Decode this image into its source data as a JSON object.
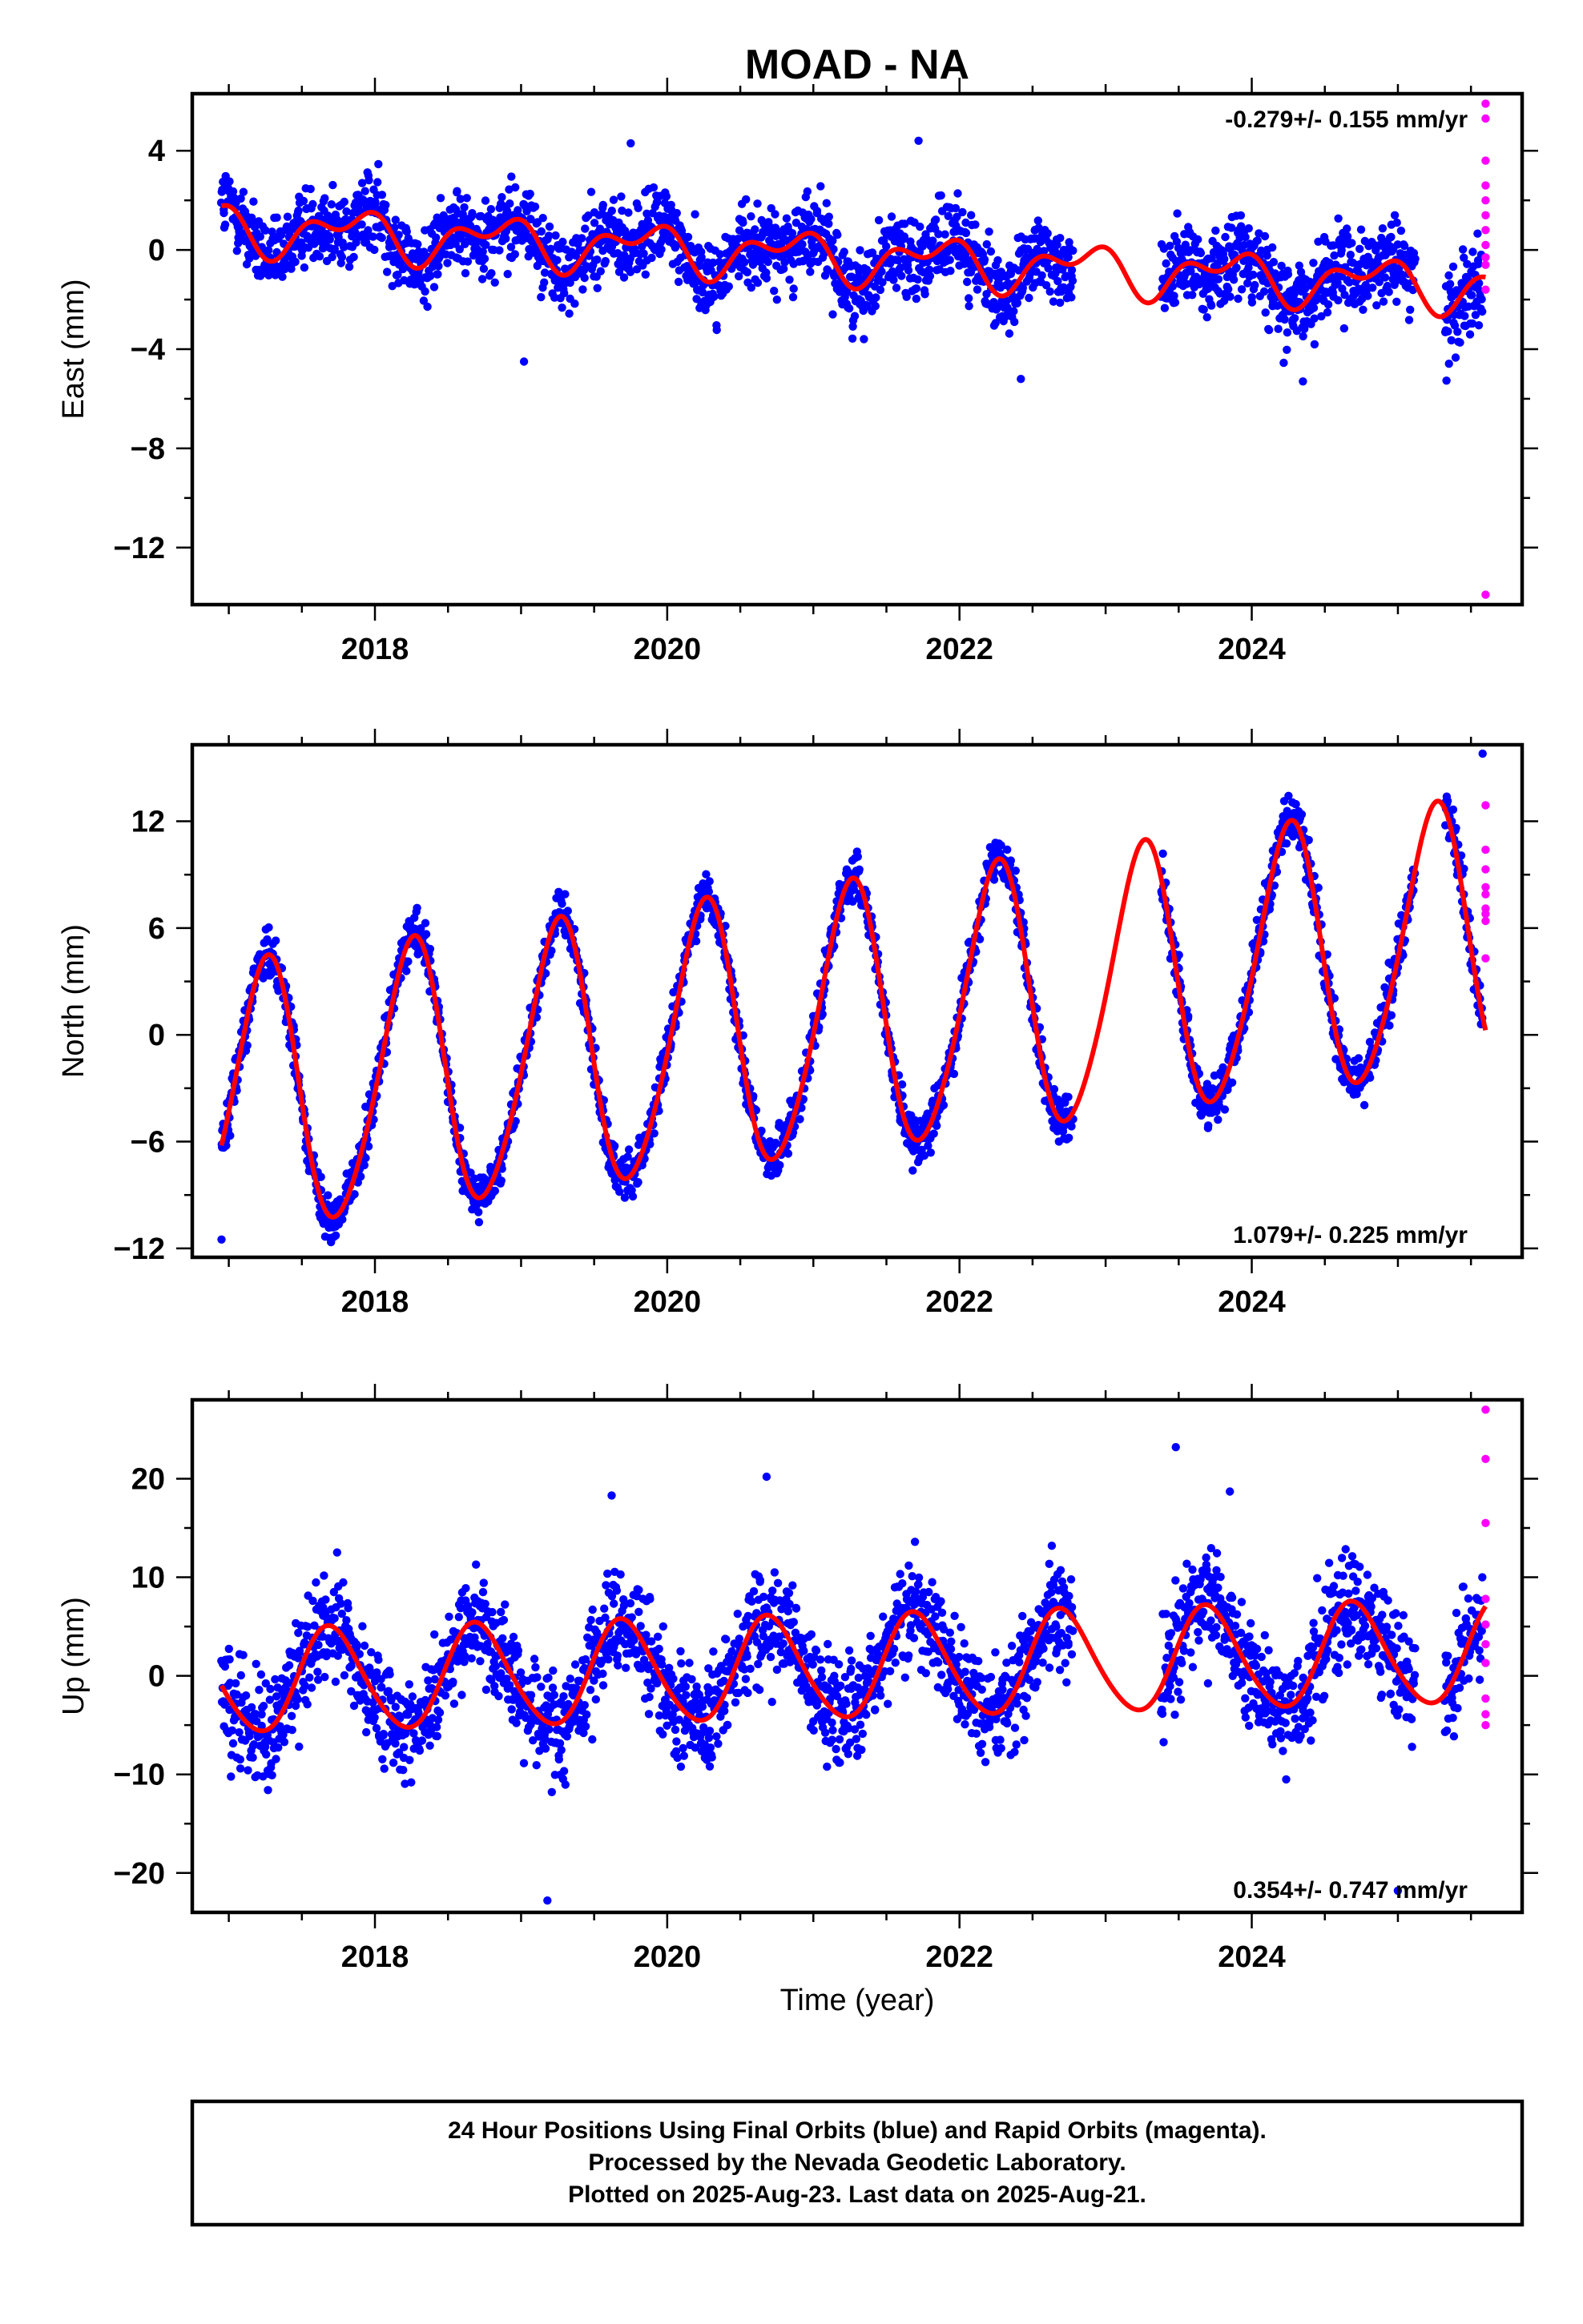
{
  "title": "MOAD - NA",
  "colors": {
    "final_orbits": "#0000ff",
    "rapid_orbits": "#ff00ff",
    "model": "#ff0000",
    "frame": "#000000"
  },
  "x_axis": {
    "label": "Time (year)",
    "range": [
      2016.75,
      2025.85
    ],
    "ticks": [
      2018,
      2020,
      2022,
      2024
    ],
    "tick_labels": [
      "2018",
      "2020",
      "2022",
      "2024"
    ]
  },
  "footer": {
    "line1": "24 Hour Positions Using Final Orbits (blue) and Rapid Orbits (magenta).",
    "line2": "Processed by the Nevada Geodetic Laboratory.",
    "line3": "Plotted on 2025-Aug-23. Last data on 2025-Aug-21."
  },
  "chart_data": [
    {
      "type": "scatter",
      "component": "east",
      "ylabel": "East (mm)",
      "ylim": [
        -14.3,
        6.3
      ],
      "yticks": [
        4,
        0,
        -4,
        -8,
        -12
      ],
      "ytick_labels": [
        "4",
        "0",
        "−4",
        "−8",
        "−12"
      ],
      "rate_text": "-0.279+/- 0.155 mm/yr",
      "rate_position": "top-right",
      "series": [
        {
          "name": "Final Orbits (blue)",
          "segments": [
            {
              "x": [
                2016.95,
                2022.78
              ],
              "spread": 1.1
            },
            {
              "x": [
                2023.38,
                2025.12
              ],
              "spread": 1.2
            },
            {
              "x": [
                2025.32,
                2025.58
              ],
              "spread": 1.3
            }
          ],
          "outliers": [
            {
              "x": 2019.02,
              "y": -4.5
            },
            {
              "x": 2021.72,
              "y": 4.4
            },
            {
              "x": 2019.75,
              "y": 4.3
            },
            {
              "x": 2022.42,
              "y": -5.2
            },
            {
              "x": 2024.35,
              "y": -5.3
            }
          ]
        },
        {
          "name": "Rapid Orbits (magenta)",
          "x": [
            2025.6,
            2025.6,
            2025.6,
            2025.6,
            2025.6,
            2025.6,
            2025.6,
            2025.6,
            2025.6,
            2025.6,
            2025.6,
            2025.6
          ],
          "y": [
            5.9,
            5.3,
            3.6,
            2.6,
            2.0,
            1.4,
            0.8,
            0.2,
            -0.3,
            -0.6,
            -1.6,
            -13.9
          ]
        },
        {
          "name": "model",
          "model": {
            "t0": 2016.95,
            "y0": 0.9,
            "rate": -0.279,
            "amp1": 0.75,
            "phase1": 0.42,
            "amp2": 0.55,
            "phase2": 0.1
          },
          "x_range": [
            2016.95,
            2025.6
          ]
        }
      ]
    },
    {
      "type": "scatter",
      "component": "north",
      "ylabel": "North (mm)",
      "ylim": [
        -12.5,
        16.3
      ],
      "yticks": [
        12,
        6,
        0,
        -6,
        -12
      ],
      "ytick_labels": [
        "12",
        "6",
        "0",
        "−6",
        "−12"
      ],
      "rate_text": "1.079+/- 0.225 mm/yr",
      "rate_position": "bottom-right",
      "series": [
        {
          "name": "Final Orbits (blue)",
          "segments": [
            {
              "x": [
                2016.95,
                2022.78
              ],
              "spread": 0.9
            },
            {
              "x": [
                2023.38,
                2025.12
              ],
              "spread": 1.0
            },
            {
              "x": [
                2025.32,
                2025.58
              ],
              "spread": 1.1
            }
          ],
          "outliers": [
            {
              "x": 2025.58,
              "y": 15.8
            },
            {
              "x": 2016.95,
              "y": -11.5
            }
          ]
        },
        {
          "name": "Rapid Orbits (magenta)",
          "x": [
            2025.6,
            2025.6,
            2025.6,
            2025.6,
            2025.6,
            2025.6,
            2025.6,
            2025.6,
            2025.6
          ],
          "y": [
            12.9,
            10.4,
            9.3,
            8.3,
            7.9,
            7.1,
            6.8,
            6.4,
            4.3
          ]
        },
        {
          "name": "model",
          "model": {
            "t0": 2016.95,
            "y0": -3.9,
            "rate": 1.079,
            "amp1": 7.5,
            "phase1": 1.0,
            "amp2": 0.8,
            "phase2": 0.3
          },
          "x_range": [
            2016.95,
            2025.6
          ]
        }
      ]
    },
    {
      "type": "scatter",
      "component": "up",
      "ylabel": "Up (mm)",
      "ylim": [
        -24,
        28
      ],
      "yticks": [
        20,
        10,
        0,
        -10,
        -20
      ],
      "ytick_labels": [
        "20",
        "10",
        "0",
        "−10",
        "−20"
      ],
      "rate_text": "0.354+/- 0.747 mm/yr",
      "rate_position": "bottom-right",
      "series": [
        {
          "name": "Final Orbits (blue)",
          "segments": [
            {
              "x": [
                2016.95,
                2022.78
              ],
              "spread": 3.8
            },
            {
              "x": [
                2023.38,
                2025.12
              ],
              "spread": 3.9
            },
            {
              "x": [
                2025.32,
                2025.58
              ],
              "spread": 4.0
            }
          ],
          "outliers": [
            {
              "x": 2023.48,
              "y": 23.2
            },
            {
              "x": 2020.68,
              "y": 20.2
            },
            {
              "x": 2019.18,
              "y": -22.8
            },
            {
              "x": 2025.0,
              "y": -21.8
            },
            {
              "x": 2019.62,
              "y": 18.3
            },
            {
              "x": 2023.85,
              "y": 18.7
            }
          ]
        },
        {
          "name": "Rapid Orbits (magenta)",
          "x": [
            2025.6,
            2025.6,
            2025.6,
            2025.6,
            2025.6,
            2025.6,
            2025.6,
            2025.6,
            2025.6,
            2025.6
          ],
          "y": [
            27.0,
            22.0,
            15.5,
            7.8,
            5.2,
            3.2,
            1.3,
            -2.3,
            -3.9,
            -5.0
          ]
        },
        {
          "name": "model",
          "model": {
            "t0": 2016.95,
            "y0": -0.7,
            "rate": 0.354,
            "amp1": 5.2,
            "phase1": 2.55,
            "amp2": 0.5,
            "phase2": 0.0
          },
          "x_range": [
            2016.95,
            2025.6
          ]
        }
      ]
    }
  ]
}
